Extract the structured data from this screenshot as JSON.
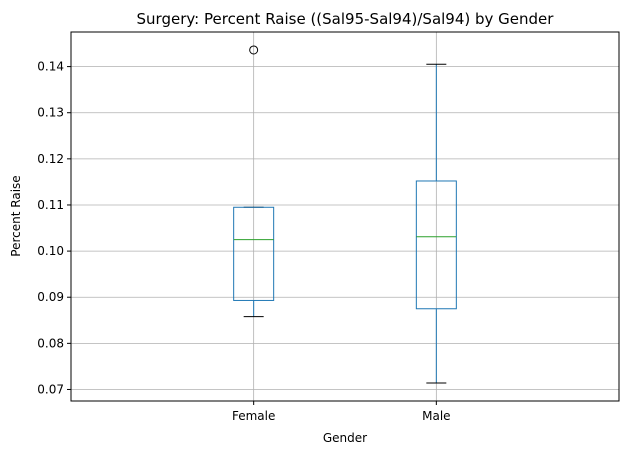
{
  "chart_data": {
    "type": "box",
    "title": "Surgery: Percent Raise ((Sal95-Sal94)/Sal94) by Gender",
    "xlabel": "Gender",
    "ylabel": "Percent Raise",
    "ylim": [
      0.0675,
      0.1475
    ],
    "yticks": [
      "0.07",
      "0.08",
      "0.09",
      "0.10",
      "0.11",
      "0.12",
      "0.13",
      "0.14"
    ],
    "grid": true,
    "categories": [
      "Female",
      "Male"
    ],
    "boxes": [
      {
        "category": "Female",
        "whisker_low": 0.0858,
        "q1": 0.0893,
        "median": 0.1025,
        "q3": 0.1095,
        "whisker_high": 0.1095,
        "outliers": [
          0.1436
        ]
      },
      {
        "category": "Male",
        "whisker_low": 0.0714,
        "q1": 0.0875,
        "median": 0.1031,
        "q3": 0.1152,
        "whisker_high": 0.1405,
        "outliers": []
      }
    ],
    "colors": {
      "box": "#1f77b4",
      "median": "#2ca02c",
      "grid": "#b0b0b0",
      "outlier": "#000000"
    }
  }
}
